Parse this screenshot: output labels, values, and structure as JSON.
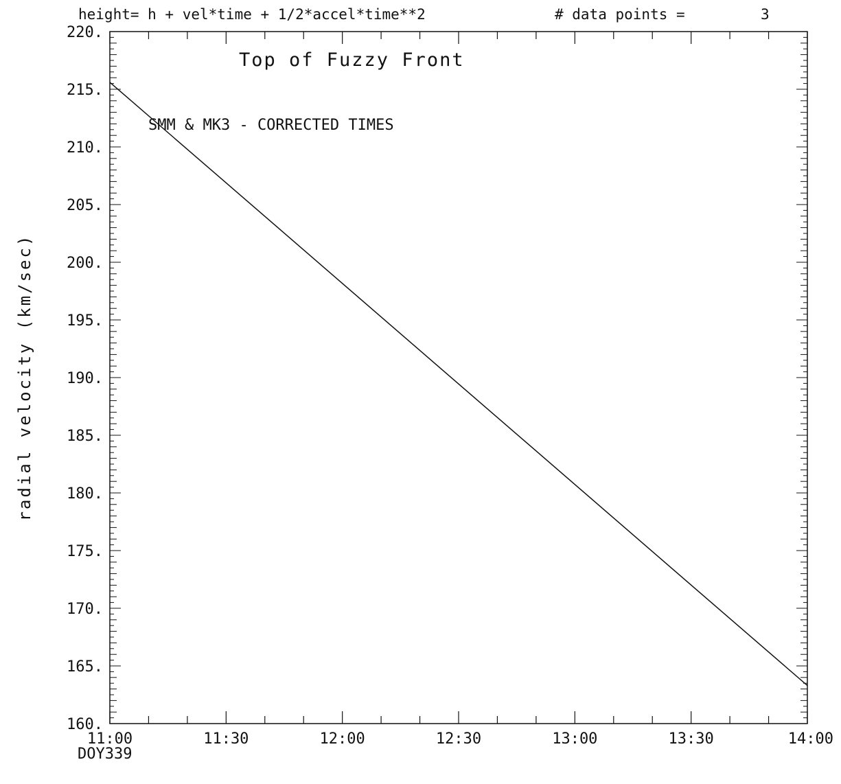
{
  "header": {
    "formula": "height= h + vel*time + 1/2*accel*time**2",
    "points_label": "# data points =",
    "points_value": "3"
  },
  "chart_data": {
    "type": "line",
    "title": "Top of Fuzzy Front",
    "annotation": "SMM & MK3 - CORRECTED TIMES",
    "ylabel": "radial velocity (km/sec)",
    "xlabel": "",
    "x_sublabel": "DOY339",
    "ylim": [
      160,
      220
    ],
    "x_range": [
      "11:00",
      "14:00"
    ],
    "x_ticks": [
      "11:00",
      "11:30",
      "12:00",
      "12:30",
      "13:00",
      "13:30",
      "14:00"
    ],
    "y_tick_labels": [
      "220.",
      "215.",
      "210.",
      "205.",
      "200.",
      "195.",
      "190.",
      "185.",
      "180.",
      "175.",
      "170.",
      "165.",
      "160."
    ],
    "series": [
      {
        "x": [
          "11:00",
          "14:00"
        ],
        "y": [
          215.6,
          163.3
        ]
      }
    ],
    "grid": false,
    "colors": {
      "line": "#111111",
      "axes": "#111111"
    }
  }
}
